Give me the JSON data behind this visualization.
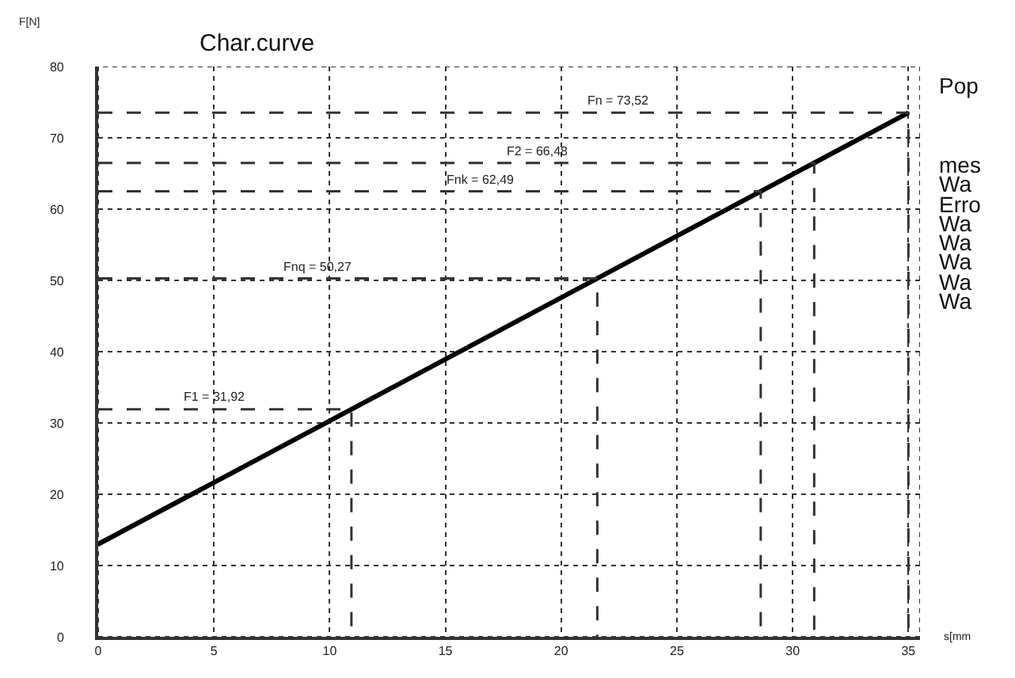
{
  "chart_data": {
    "type": "line",
    "title": "Char.curve",
    "xlabel": "s[mm",
    "ylabel": "F[N]",
    "xlim": [
      0,
      35.5
    ],
    "ylim": [
      0,
      80
    ],
    "xticks": [
      0,
      5,
      10,
      15,
      20,
      25,
      30,
      35
    ],
    "yticks": [
      0,
      10,
      20,
      30,
      40,
      50,
      60,
      70,
      80
    ],
    "grid": true,
    "marker": "none",
    "series": [
      {
        "color": "#000000",
        "x": [
          0,
          35
        ],
        "values": [
          13,
          73.52
        ],
        "line_style": "solid"
      },
      {
        "color": "#333333",
        "x": [
          0,
          10.94,
          10.94
        ],
        "values": [
          31.92,
          31.92,
          0
        ],
        "line_style": "dashed"
      },
      {
        "color": "#333333",
        "x": [
          0,
          21.56,
          21.56
        ],
        "values": [
          50.27,
          50.27,
          0
        ],
        "line_style": "dashed"
      },
      {
        "color": "#333333",
        "x": [
          0,
          28.62,
          28.62
        ],
        "values": [
          62.49,
          62.49,
          0
        ],
        "line_style": "dashed"
      },
      {
        "color": "#333333",
        "x": [
          0,
          30.93,
          30.93
        ],
        "values": [
          66.48,
          66.48,
          0
        ],
        "line_style": "dashed"
      },
      {
        "color": "#333333",
        "x": [
          0,
          35,
          35
        ],
        "values": [
          73.52,
          73.52,
          0
        ],
        "line_style": "dashed"
      }
    ],
    "annotations": [
      {
        "text": "F1 = 31,92",
        "x": 5,
        "y": 31.92
      },
      {
        "text": "Fnq = 50,27",
        "x": 9.5,
        "y": 50.27
      },
      {
        "text": "Fnk = 62,49",
        "x": 16.5,
        "y": 62.49
      },
      {
        "text": "F2 = 66,48",
        "x": 19,
        "y": 66.48
      },
      {
        "text": "Fn = 73,52",
        "x": 22.5,
        "y": 73.52
      },
      "Pop",
      "mes",
      "Wa",
      "Erro",
      "Wa",
      "Wa",
      "Wa",
      "Wa",
      "Wa"
    ]
  }
}
